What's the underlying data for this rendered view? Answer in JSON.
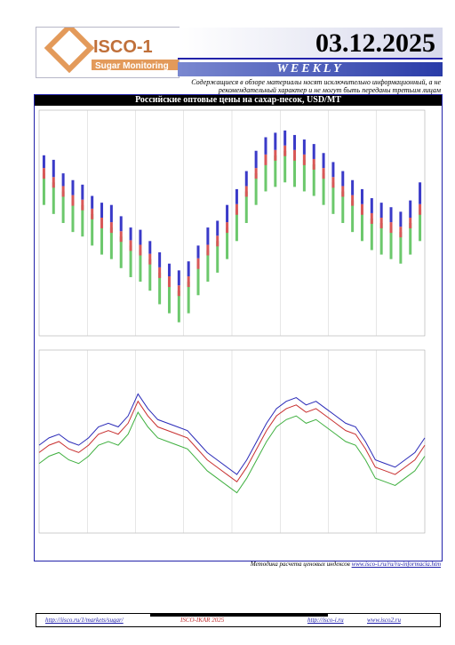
{
  "header": {
    "logo": "ISCO-1",
    "logo_subtitle": "Sugar Monitoring",
    "date": "03.12.2025",
    "period": "WEEKLY",
    "disclaimer": "Содержащиеся в обзоре материалы носят исключительно информационный, а не рекомендательный характер и не могут быть переданы третьим лицам"
  },
  "chart_data": [
    {
      "type": "range",
      "title": "Российские оптовые цены на сахар-песок, USD/MT",
      "ylim": [
        400,
        900
      ],
      "series": [
        {
          "color": "#3a3ac8",
          "values": [
            800,
            790,
            760,
            745,
            735,
            710,
            695,
            690,
            665,
            640,
            635,
            610,
            585,
            560,
            545,
            565,
            600,
            640,
            655,
            690,
            725,
            765,
            810,
            840,
            850,
            855,
            845,
            835,
            825,
            805,
            785,
            765,
            745,
            725,
            705,
            695,
            685,
            675,
            700,
            740
          ]
        },
        {
          "color": "#d85858",
          "values": [
            760,
            740,
            720,
            700,
            690,
            670,
            650,
            640,
            620,
            600,
            590,
            570,
            540,
            520,
            500,
            520,
            560,
            590,
            610,
            640,
            680,
            720,
            760,
            790,
            800,
            810,
            800,
            790,
            780,
            760,
            740,
            720,
            700,
            680,
            660,
            650,
            640,
            630,
            650,
            680
          ]
        },
        {
          "color": "#6cc86c",
          "values": [
            690,
            670,
            650,
            630,
            620,
            600,
            580,
            570,
            550,
            530,
            520,
            500,
            470,
            450,
            430,
            450,
            490,
            520,
            540,
            570,
            610,
            650,
            690,
            720,
            730,
            740,
            730,
            720,
            710,
            690,
            670,
            650,
            630,
            610,
            590,
            580,
            570,
            560,
            580,
            610
          ]
        }
      ]
    },
    {
      "type": "line",
      "ylim": [
        400,
        900
      ],
      "series": [
        {
          "color": "#2a2ab8",
          "values": [
            640,
            660,
            670,
            650,
            640,
            660,
            690,
            700,
            690,
            720,
            780,
            740,
            710,
            700,
            690,
            680,
            650,
            620,
            600,
            580,
            560,
            600,
            650,
            700,
            740,
            760,
            770,
            750,
            760,
            740,
            720,
            700,
            690,
            650,
            600,
            590,
            580,
            600,
            620,
            660
          ]
        },
        {
          "color": "#c83030",
          "values": [
            620,
            640,
            650,
            630,
            620,
            640,
            670,
            680,
            670,
            700,
            760,
            720,
            690,
            680,
            670,
            660,
            630,
            600,
            580,
            560,
            540,
            580,
            630,
            680,
            720,
            740,
            750,
            730,
            740,
            720,
            700,
            680,
            670,
            630,
            580,
            570,
            560,
            580,
            600,
            640
          ]
        },
        {
          "color": "#40b040",
          "values": [
            590,
            610,
            620,
            600,
            590,
            610,
            640,
            650,
            640,
            670,
            730,
            690,
            660,
            650,
            640,
            630,
            600,
            570,
            550,
            530,
            510,
            550,
            600,
            650,
            690,
            710,
            720,
            700,
            710,
            690,
            670,
            650,
            640,
            600,
            550,
            540,
            530,
            550,
            570,
            610
          ]
        }
      ]
    }
  ],
  "footer": {
    "method_text": "Методика расчета ценовых индексов",
    "method_link": "www.isco-i.ru/ru/ru-informacia.htm",
    "link1": "http://iisco.ru/1/markets/sugar/",
    "copyright": "ISCO-IKAR 2025",
    "link2": "http://isco-i.ru",
    "link3": "www.isco2.ru"
  }
}
